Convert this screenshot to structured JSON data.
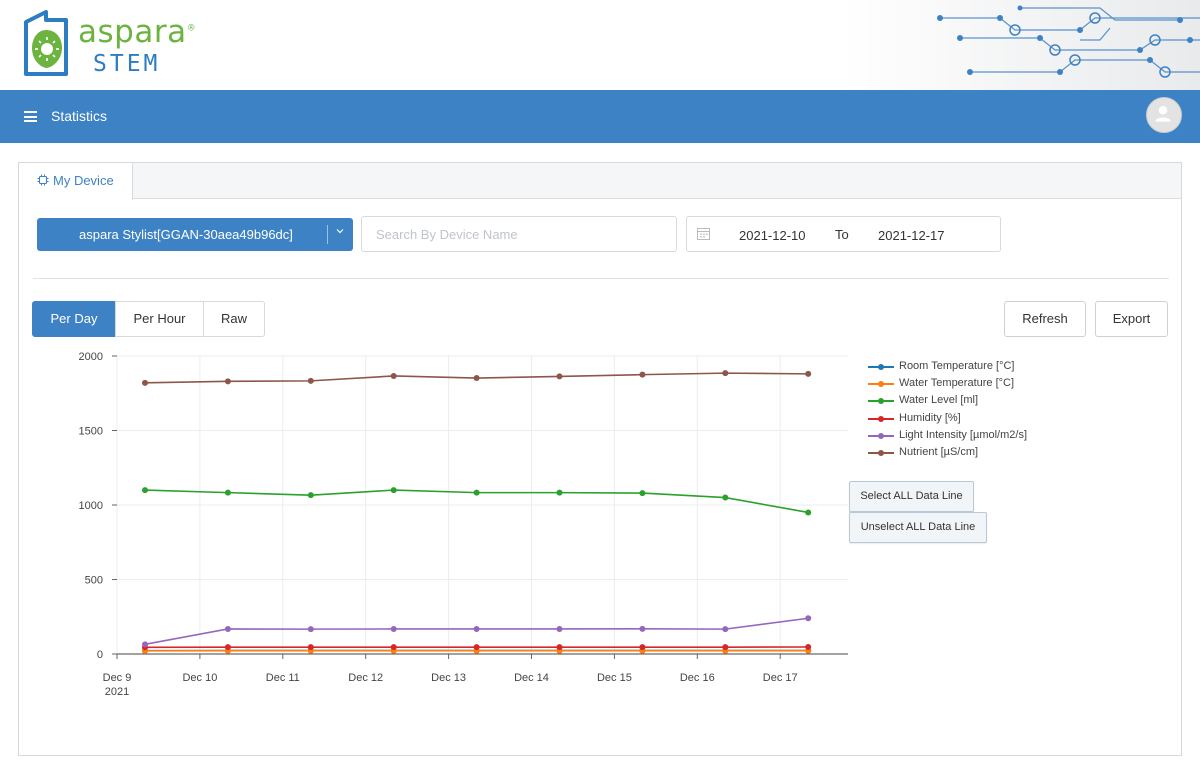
{
  "brand": {
    "name": "aspara",
    "reg": "®",
    "sub": "STEM"
  },
  "navbar": {
    "title": "Statistics"
  },
  "tabs": [
    {
      "label": "My Device",
      "active": true
    }
  ],
  "filters": {
    "device": "aspara Stylist[GGAN-30aea49b96dc]",
    "search_placeholder": "Search By Device Name",
    "date_from": "2021-12-10",
    "date_to_label": "To",
    "date_to": "2021-12-17"
  },
  "granularity": [
    {
      "label": "Per Day",
      "active": true
    },
    {
      "label": "Per Hour",
      "active": false
    },
    {
      "label": "Raw",
      "active": false
    }
  ],
  "actions": {
    "refresh": "Refresh",
    "export": "Export"
  },
  "line_buttons": {
    "select_all": "Select ALL Data Line",
    "unselect_all": "Unselect ALL Data Line"
  },
  "colors": {
    "primary": "#3d82c4",
    "brand_green": "#6cb33f"
  },
  "chart_data": {
    "type": "line",
    "x": [
      "2021-12-09",
      "2021-12-10",
      "2021-12-11",
      "2021-12-12",
      "2021-12-13",
      "2021-12-14",
      "2021-12-15",
      "2021-12-16",
      "2021-12-17"
    ],
    "x_tick_labels": [
      "Dec 9",
      "Dec 10",
      "Dec 11",
      "Dec 12",
      "Dec 13",
      "Dec 14",
      "Dec 15",
      "Dec 16",
      "Dec 17"
    ],
    "x_year_label": "2021",
    "ylim": [
      0,
      2000
    ],
    "y_ticks": [
      0,
      500,
      1000,
      1500,
      2000
    ],
    "grid": true,
    "legend": "right",
    "series": [
      {
        "name": "Room Temperature [°C]",
        "color": "#1f77b4",
        "values": [
          22,
          23,
          23,
          23,
          23,
          23,
          23,
          23,
          23
        ]
      },
      {
        "name": "Water Temperature [°C]",
        "color": "#ff7f0e",
        "values": [
          21,
          22,
          22,
          22,
          22,
          22,
          22,
          22,
          22
        ]
      },
      {
        "name": "Water Level [ml]",
        "color": "#2ca02c",
        "values": [
          1100,
          1083,
          1066,
          1100,
          1083,
          1083,
          1080,
          1050,
          950
        ]
      },
      {
        "name": "Humidity [%]",
        "color": "#d62728",
        "values": [
          45,
          46,
          46,
          46,
          46,
          46,
          46,
          46,
          47
        ]
      },
      {
        "name": "Light Intensity [µmol/m2/s]",
        "color": "#9467bd",
        "values": [
          65,
          168,
          167,
          168,
          168,
          168,
          169,
          167,
          240
        ]
      },
      {
        "name": "Nutrient [µS/cm]",
        "color": "#8c564b",
        "values": [
          1820,
          1830,
          1833,
          1866,
          1852,
          1863,
          1875,
          1885,
          1880
        ]
      }
    ]
  }
}
